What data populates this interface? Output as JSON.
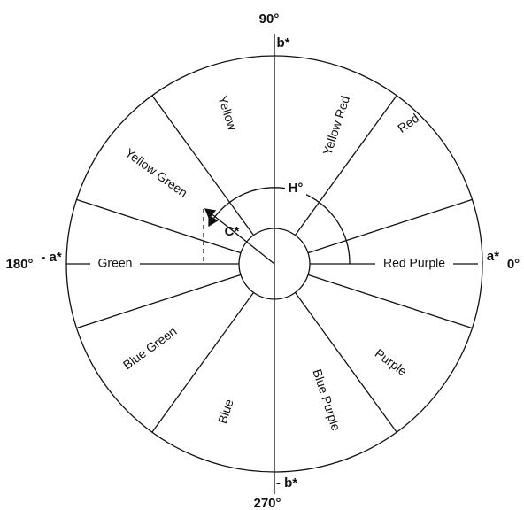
{
  "axes": {
    "top_angle": "90°",
    "top_axis": "b*",
    "left_angle": "180°",
    "left_axis": "- a*",
    "right_axis": "a*",
    "right_angle": "0°",
    "bottom_axis": "- b*",
    "bottom_angle": "270°"
  },
  "annotations": {
    "hue": "H°",
    "chroma": "C*"
  },
  "sectors": [
    {
      "label": "Red Purple"
    },
    {
      "label": "Red"
    },
    {
      "label": "Yellow Red"
    },
    {
      "label": "Yellow"
    },
    {
      "label": "Yellow Green"
    },
    {
      "label": "Green"
    },
    {
      "label": "Blue Green"
    },
    {
      "label": "Blue"
    },
    {
      "label": "Blue Purple"
    },
    {
      "label": "Purple"
    }
  ]
}
